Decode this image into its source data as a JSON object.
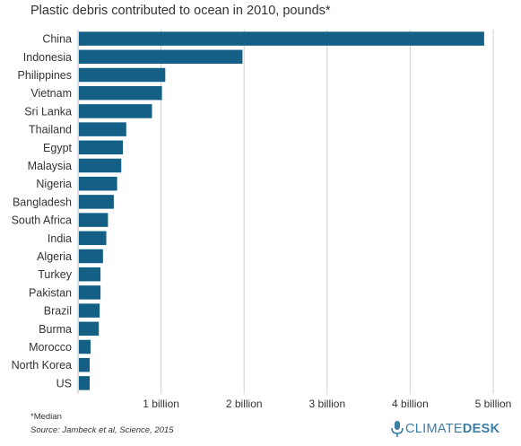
{
  "title": "Plastic debris contributed to ocean in 2010, pounds*",
  "footnote": "*Median",
  "source": "Source: Jambeck et al, Science, 2015",
  "logo": {
    "part1": "CLIMATE",
    "part2": "DESK",
    "icon": "microphone-icon"
  },
  "colors": {
    "bar": "#135f86",
    "grid": "#d0d0d0",
    "axis": "#bfbfbf",
    "logo": "#3b7ea6"
  },
  "chart_data": {
    "type": "bar",
    "orientation": "horizontal",
    "categories": [
      "China",
      "Indonesia",
      "Philippines",
      "Vietnam",
      "Sri Lanka",
      "Thailand",
      "Egypt",
      "Malaysia",
      "Nigeria",
      "Bangladesh",
      "South Africa",
      "India",
      "Algeria",
      "Turkey",
      "Pakistan",
      "Brazil",
      "Burma",
      "Morocco",
      "North Korea",
      "US"
    ],
    "values": [
      4.88,
      1.97,
      1.04,
      1.0,
      0.88,
      0.57,
      0.53,
      0.51,
      0.46,
      0.42,
      0.35,
      0.33,
      0.29,
      0.26,
      0.26,
      0.25,
      0.24,
      0.14,
      0.13,
      0.13
    ],
    "unit": "billion pounds",
    "xlim": [
      0,
      5
    ],
    "xticks": [
      1,
      2,
      3,
      4,
      5
    ],
    "xtick_labels": [
      "1 billion",
      "2 billion",
      "3 billion",
      "4 billion",
      "5 billion"
    ],
    "grid": true
  }
}
